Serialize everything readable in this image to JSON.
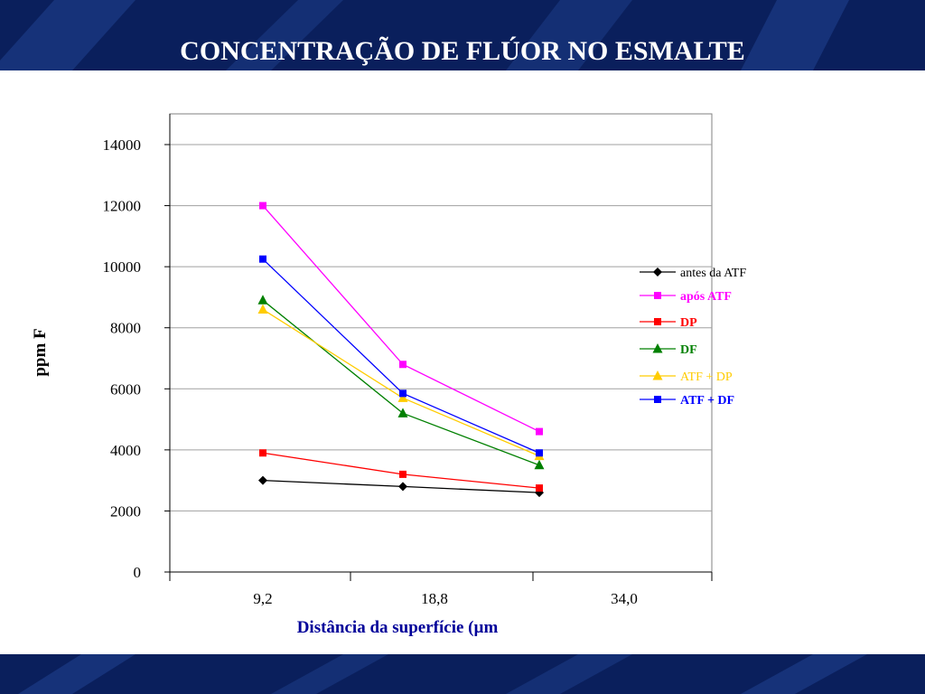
{
  "page": {
    "title": "CONCENTRAÇÃO DE FLÚOR NO ESMALTE"
  },
  "colors": {
    "band": "#0a1f5c",
    "band_stripe": "#1e3f8c"
  },
  "chart_data": {
    "type": "line",
    "title": "",
    "xlabel": "Distância da superfície (µm",
    "ylabel": "ppm F",
    "x_ticks": [
      "9,2",
      "18,8",
      "34,0"
    ],
    "x": [
      9.2,
      18.8,
      34.0
    ],
    "ylim": [
      0,
      14000
    ],
    "yticks": [
      0,
      2000,
      4000,
      6000,
      8000,
      10000,
      12000,
      14000
    ],
    "grid": true,
    "legend_position": "right",
    "series": [
      {
        "name": "antes da ATF",
        "color": "#000000",
        "marker": "diamond",
        "values": [
          3000,
          2800,
          2600
        ]
      },
      {
        "name": "após ATF",
        "color": "#ff00ff",
        "marker": "square",
        "values": [
          12000,
          6800,
          4600
        ]
      },
      {
        "name": "DP",
        "color": "#ff0000",
        "marker": "square",
        "values": [
          3900,
          3200,
          2750
        ]
      },
      {
        "name": "DF",
        "color": "#008000",
        "marker": "triangle",
        "values": [
          8900,
          5200,
          3500
        ]
      },
      {
        "name": "ATF + DP",
        "color": "#ffcc00",
        "marker": "triangle",
        "values": [
          8600,
          5700,
          3800
        ]
      },
      {
        "name": "ATF + DF",
        "color": "#0000ff",
        "marker": "square",
        "values": [
          10250,
          5850,
          3900
        ]
      }
    ]
  }
}
